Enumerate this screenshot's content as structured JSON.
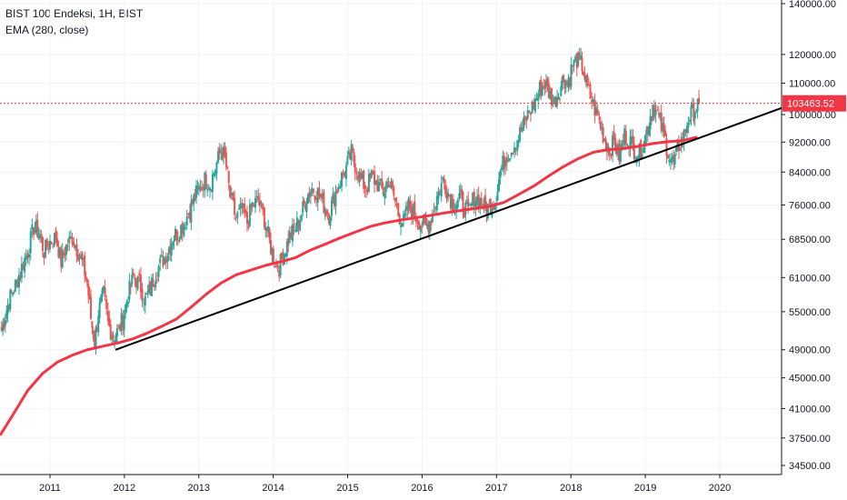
{
  "header": {
    "symbol_line": "BIST 100 Endeksi, 1H, BIST",
    "indicator_line": "EMA (280, close)"
  },
  "colors": {
    "up": "#26a69a",
    "down": "#ef5350",
    "ema": "#f23645",
    "trendline": "#000000",
    "price_line": "#f23645",
    "grid": "#f0f3fa",
    "axis": "#131722"
  },
  "chart_data": {
    "type": "candlestick",
    "title": "BIST 100 Endeksi, 1H, BIST",
    "scale": "log",
    "ylim": [
      33000,
      150000
    ],
    "xlim": [
      2010.33,
      2020.9
    ],
    "x_ticks": [
      "2011",
      "2012",
      "2013",
      "2014",
      "2015",
      "2016",
      "2017",
      "2018",
      "2019",
      "2020"
    ],
    "y_ticks": [
      "140000.00",
      "120000.00",
      "110000.00",
      "100000.00",
      "92000.00",
      "84000.00",
      "76000.00",
      "68500.00",
      "61000.00",
      "55000.00",
      "49000.00",
      "45000.00",
      "41000.00",
      "37500.00",
      "34500.00"
    ],
    "last_price": 103463.52,
    "last_price_label": "103463.52",
    "series": [
      {
        "name": "BIST 100 Endeksi",
        "type": "candles",
        "points": [
          [
            2010.35,
            52000
          ],
          [
            2010.45,
            57000
          ],
          [
            2010.55,
            60000
          ],
          [
            2010.62,
            63000
          ],
          [
            2010.7,
            66000
          ],
          [
            2010.78,
            71000
          ],
          [
            2010.85,
            70000
          ],
          [
            2010.92,
            66000
          ],
          [
            2011.0,
            68000
          ],
          [
            2011.08,
            69000
          ],
          [
            2011.15,
            64000
          ],
          [
            2011.22,
            67000
          ],
          [
            2011.3,
            69000
          ],
          [
            2011.38,
            66000
          ],
          [
            2011.45,
            63000
          ],
          [
            2011.5,
            60000
          ],
          [
            2011.55,
            54000
          ],
          [
            2011.6,
            50000
          ],
          [
            2011.65,
            55000
          ],
          [
            2011.72,
            58000
          ],
          [
            2011.78,
            53000
          ],
          [
            2011.85,
            51000
          ],
          [
            2011.92,
            52000
          ],
          [
            2011.98,
            54000
          ],
          [
            2012.05,
            58000
          ],
          [
            2012.12,
            61000
          ],
          [
            2012.2,
            60000
          ],
          [
            2012.28,
            57000
          ],
          [
            2012.35,
            59000
          ],
          [
            2012.42,
            62000
          ],
          [
            2012.5,
            64000
          ],
          [
            2012.58,
            66000
          ],
          [
            2012.65,
            69000
          ],
          [
            2012.72,
            70000
          ],
          [
            2012.8,
            72000
          ],
          [
            2012.88,
            75000
          ],
          [
            2012.95,
            78000
          ],
          [
            2013.0,
            80000
          ],
          [
            2013.08,
            82000
          ],
          [
            2013.15,
            81000
          ],
          [
            2013.22,
            85000
          ],
          [
            2013.3,
            90000
          ],
          [
            2013.35,
            88000
          ],
          [
            2013.42,
            78000
          ],
          [
            2013.5,
            73000
          ],
          [
            2013.58,
            75000
          ],
          [
            2013.65,
            72000
          ],
          [
            2013.72,
            76000
          ],
          [
            2013.8,
            77000
          ],
          [
            2013.88,
            73000
          ],
          [
            2013.95,
            68000
          ],
          [
            2014.02,
            64000
          ],
          [
            2014.08,
            63000
          ],
          [
            2014.15,
            66000
          ],
          [
            2014.22,
            69000
          ],
          [
            2014.3,
            71000
          ],
          [
            2014.38,
            74000
          ],
          [
            2014.45,
            78000
          ],
          [
            2014.52,
            80000
          ],
          [
            2014.6,
            79000
          ],
          [
            2014.68,
            76000
          ],
          [
            2014.75,
            74000
          ],
          [
            2014.82,
            78000
          ],
          [
            2014.9,
            82000
          ],
          [
            2014.98,
            85000
          ],
          [
            2015.05,
            89000
          ],
          [
            2015.1,
            86000
          ],
          [
            2015.18,
            82000
          ],
          [
            2015.25,
            80000
          ],
          [
            2015.32,
            83000
          ],
          [
            2015.4,
            81000
          ],
          [
            2015.48,
            79000
          ],
          [
            2015.55,
            82000
          ],
          [
            2015.62,
            78000
          ],
          [
            2015.68,
            74000
          ],
          [
            2015.75,
            72000
          ],
          [
            2015.82,
            76000
          ],
          [
            2015.9,
            74000
          ],
          [
            2015.98,
            72000
          ],
          [
            2016.05,
            71000
          ],
          [
            2016.12,
            73000
          ],
          [
            2016.2,
            78000
          ],
          [
            2016.28,
            82000
          ],
          [
            2016.35,
            79000
          ],
          [
            2016.42,
            76000
          ],
          [
            2016.5,
            78000
          ],
          [
            2016.55,
            76000
          ],
          [
            2016.62,
            74000
          ],
          [
            2016.7,
            78000
          ],
          [
            2016.78,
            77000
          ],
          [
            2016.85,
            75000
          ],
          [
            2016.92,
            76000
          ],
          [
            2016.98,
            77000
          ],
          [
            2017.05,
            84000
          ],
          [
            2017.12,
            88000
          ],
          [
            2017.2,
            90000
          ],
          [
            2017.28,
            93000
          ],
          [
            2017.35,
            96000
          ],
          [
            2017.42,
            100000
          ],
          [
            2017.5,
            103000
          ],
          [
            2017.58,
            108000
          ],
          [
            2017.65,
            110000
          ],
          [
            2017.72,
            106000
          ],
          [
            2017.78,
            104000
          ],
          [
            2017.85,
            108000
          ],
          [
            2017.9,
            112000
          ],
          [
            2017.95,
            110000
          ],
          [
            2018.02,
            116000
          ],
          [
            2018.08,
            118000
          ],
          [
            2018.15,
            116000
          ],
          [
            2018.22,
            108000
          ],
          [
            2018.3,
            103000
          ],
          [
            2018.38,
            98000
          ],
          [
            2018.45,
            93000
          ],
          [
            2018.52,
            90000
          ],
          [
            2018.58,
            92000
          ],
          [
            2018.65,
            88000
          ],
          [
            2018.72,
            94000
          ],
          [
            2018.78,
            93000
          ],
          [
            2018.85,
            90000
          ],
          [
            2018.92,
            89000
          ],
          [
            2018.98,
            92000
          ],
          [
            2019.05,
            98000
          ],
          [
            2019.1,
            103000
          ],
          [
            2019.18,
            99000
          ],
          [
            2019.25,
            94000
          ],
          [
            2019.32,
            88000
          ],
          [
            2019.38,
            86000
          ],
          [
            2019.45,
            91000
          ],
          [
            2019.52,
            94000
          ],
          [
            2019.58,
            99000
          ],
          [
            2019.65,
            101000
          ],
          [
            2019.72,
            103463.52
          ]
        ]
      },
      {
        "name": "EMA (280, close)",
        "type": "line",
        "points": [
          [
            2010.33,
            37800
          ],
          [
            2010.5,
            40200
          ],
          [
            2010.7,
            43300
          ],
          [
            2010.9,
            45600
          ],
          [
            2011.1,
            47200
          ],
          [
            2011.3,
            48200
          ],
          [
            2011.5,
            49000
          ],
          [
            2011.7,
            49500
          ],
          [
            2011.9,
            50000
          ],
          [
            2012.1,
            50600
          ],
          [
            2012.3,
            51500
          ],
          [
            2012.5,
            52600
          ],
          [
            2012.7,
            53800
          ],
          [
            2012.9,
            55800
          ],
          [
            2013.1,
            58000
          ],
          [
            2013.3,
            60000
          ],
          [
            2013.5,
            61500
          ],
          [
            2013.7,
            62400
          ],
          [
            2013.9,
            63300
          ],
          [
            2014.1,
            64000
          ],
          [
            2014.3,
            64800
          ],
          [
            2014.5,
            66300
          ],
          [
            2014.7,
            67500
          ],
          [
            2014.9,
            68800
          ],
          [
            2015.1,
            70000
          ],
          [
            2015.3,
            71200
          ],
          [
            2015.5,
            72000
          ],
          [
            2015.7,
            72600
          ],
          [
            2015.9,
            73100
          ],
          [
            2016.1,
            73600
          ],
          [
            2016.3,
            74200
          ],
          [
            2016.5,
            74700
          ],
          [
            2016.7,
            75200
          ],
          [
            2016.9,
            75700
          ],
          [
            2017.1,
            76600
          ],
          [
            2017.3,
            78500
          ],
          [
            2017.5,
            80500
          ],
          [
            2017.7,
            83000
          ],
          [
            2017.9,
            85400
          ],
          [
            2018.1,
            87500
          ],
          [
            2018.3,
            89200
          ],
          [
            2018.5,
            89900
          ],
          [
            2018.7,
            90200
          ],
          [
            2018.9,
            90800
          ],
          [
            2019.1,
            91600
          ],
          [
            2019.3,
            92100
          ],
          [
            2019.5,
            92400
          ],
          [
            2019.7,
            93400
          ]
        ]
      },
      {
        "name": "Trend line",
        "type": "line",
        "points": [
          [
            2011.88,
            49000
          ],
          [
            2020.83,
            102000
          ]
        ]
      }
    ],
    "price_line": 103463.52
  }
}
